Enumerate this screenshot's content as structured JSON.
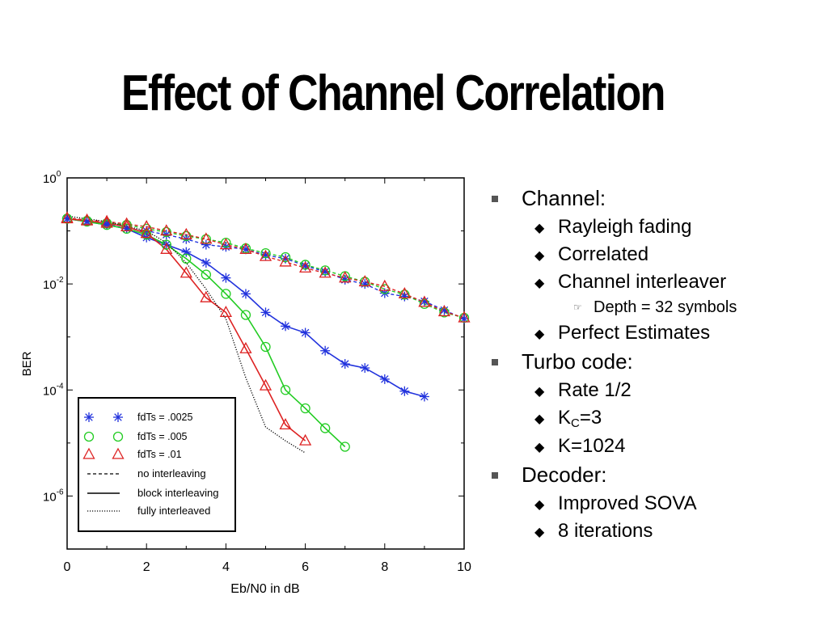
{
  "slide": {
    "title": "Effect of Channel Correlation"
  },
  "bullets": [
    {
      "level": 1,
      "text": "Channel:"
    },
    {
      "level": 2,
      "text": "Rayleigh fading"
    },
    {
      "level": 2,
      "text": "Correlated"
    },
    {
      "level": 2,
      "text": "Channel interleaver"
    },
    {
      "level": 3,
      "text": "Depth = 32 symbols"
    },
    {
      "level": 2,
      "text": "Perfect Estimates"
    },
    {
      "level": 1,
      "text": "Turbo code:"
    },
    {
      "level": 2,
      "text": "Rate 1/2"
    },
    {
      "level": 2,
      "text": "K",
      "sub": "C",
      "suffix": "=3"
    },
    {
      "level": 2,
      "text": "K=1024"
    },
    {
      "level": 1,
      "text": "Decoder:"
    },
    {
      "level": 2,
      "text": "Improved SOVA"
    },
    {
      "level": 2,
      "text": "8 iterations"
    }
  ],
  "icons": {
    "level1": "square-bullet-icon",
    "level2": "diamond-bullet-icon",
    "level3": "pointing-hand-icon"
  },
  "chart_data": {
    "type": "line",
    "xlabel": "Eb/N0 in dB",
    "ylabel": "BER",
    "xlim": [
      0,
      10
    ],
    "ylim": [
      1e-07,
      1
    ],
    "yscale": "log",
    "xticks": [
      0,
      2,
      4,
      6,
      8,
      10
    ],
    "yticks": [
      {
        "value": 1,
        "label": "10^0"
      },
      {
        "value": 0.01,
        "label": "10^-2"
      },
      {
        "value": 0.0001,
        "label": "10^-4"
      },
      {
        "value": 1e-06,
        "label": "10^-6"
      }
    ],
    "grid": false,
    "legend_position": "bottom-left",
    "legend": [
      {
        "label": "fdTs = .0025",
        "marker": "star",
        "color": "#2233dd"
      },
      {
        "label": "fdTs = .005",
        "marker": "circle",
        "color": "#22cc22"
      },
      {
        "label": "fdTs = .01",
        "marker": "triangle",
        "color": "#dd2222"
      },
      {
        "label": "no interleaving",
        "dash": "dashed"
      },
      {
        "label": "block interleaving",
        "dash": "solid"
      },
      {
        "label": "fully interleaved",
        "dash": "dotted"
      }
    ],
    "series": [
      {
        "name": "fdTs = .0025",
        "interleaving": "no interleaving",
        "marker": "star",
        "color": "#2233dd",
        "x": [
          0,
          0.5,
          1,
          1.5,
          2,
          2.5,
          3,
          3.5,
          4,
          4.5,
          5,
          5.5,
          6,
          6.5,
          7,
          7.5,
          8,
          8.5,
          9,
          9.5,
          10
        ],
        "y": [
          0.17,
          0.15,
          0.135,
          0.11,
          0.1,
          0.085,
          0.07,
          0.055,
          0.05,
          0.045,
          0.035,
          0.03,
          0.022,
          0.017,
          0.012,
          0.01,
          0.0067,
          0.0058,
          0.0047,
          0.0032,
          0.0022
        ]
      },
      {
        "name": "fdTs = .005",
        "interleaving": "no interleaving",
        "marker": "circle",
        "color": "#22cc22",
        "x": [
          0,
          0.5,
          1,
          1.5,
          2,
          2.5,
          3,
          3.5,
          4,
          4.5,
          5,
          5.5,
          6,
          6.5,
          7,
          7.5,
          8,
          8.5,
          9,
          9.5,
          10
        ],
        "y": [
          0.17,
          0.155,
          0.14,
          0.13,
          0.11,
          0.095,
          0.08,
          0.07,
          0.06,
          0.047,
          0.038,
          0.032,
          0.023,
          0.018,
          0.014,
          0.011,
          0.008,
          0.0063,
          0.0042,
          0.0029,
          0.0023
        ]
      },
      {
        "name": "fdTs = .01",
        "interleaving": "no interleaving",
        "marker": "triangle",
        "color": "#dd2222",
        "x": [
          0,
          0.5,
          1,
          1.5,
          2,
          2.5,
          3,
          3.5,
          4,
          4.5,
          5,
          5.5,
          6,
          6.5,
          7,
          7.5,
          8,
          8.5,
          9,
          9.5,
          10
        ],
        "y": [
          0.175,
          0.16,
          0.15,
          0.135,
          0.12,
          0.1,
          0.085,
          0.07,
          0.055,
          0.045,
          0.033,
          0.026,
          0.02,
          0.016,
          0.013,
          0.011,
          0.009,
          0.0065,
          0.0045,
          0.003,
          0.0023
        ]
      },
      {
        "name": "fdTs = .0025",
        "interleaving": "block interleaving",
        "marker": "star",
        "color": "#2233dd",
        "x": [
          0,
          0.5,
          1,
          1.5,
          2,
          2.5,
          3,
          3.5,
          4,
          4.5,
          5,
          5.5,
          6,
          6.5,
          7,
          7.5,
          8,
          8.5,
          9
        ],
        "y": [
          0.17,
          0.15,
          0.13,
          0.11,
          0.075,
          0.055,
          0.04,
          0.025,
          0.013,
          0.0065,
          0.0029,
          0.0016,
          0.0012,
          0.00055,
          0.00031,
          0.00026,
          0.00016,
          9.5e-05,
          7.5e-05
        ]
      },
      {
        "name": "fdTs = .005",
        "interleaving": "block interleaving",
        "marker": "circle",
        "color": "#22cc22",
        "x": [
          0,
          0.5,
          1,
          1.5,
          2,
          2.5,
          3,
          3.5,
          4,
          4.5,
          5,
          5.5,
          6,
          6.5,
          7
        ],
        "y": [
          0.17,
          0.15,
          0.13,
          0.11,
          0.085,
          0.055,
          0.03,
          0.015,
          0.0065,
          0.0026,
          0.00065,
          0.0001,
          4.5e-05,
          1.9e-05,
          8.5e-06
        ]
      },
      {
        "name": "fdTs = .01",
        "interleaving": "block interleaving",
        "marker": "triangle",
        "color": "#dd2222",
        "x": [
          0,
          0.5,
          1,
          1.5,
          2,
          2.5,
          3,
          3.5,
          4,
          4.5,
          5,
          5.5,
          6
        ],
        "y": [
          0.17,
          0.155,
          0.14,
          0.12,
          0.09,
          0.045,
          0.016,
          0.0055,
          0.0029,
          0.0006,
          0.00012,
          2.2e-05,
          1.1e-05
        ]
      },
      {
        "name": "fully interleaved",
        "interleaving": "fully interleaved",
        "marker": "none",
        "color": "#000000",
        "x": [
          0,
          1,
          2,
          2.5,
          3,
          3.5,
          4,
          4.5,
          5,
          5.5,
          6
        ],
        "y": [
          0.19,
          0.15,
          0.1,
          0.06,
          0.025,
          0.008,
          0.0022,
          0.00017,
          2e-05,
          1.1e-05,
          6.5e-06
        ]
      }
    ]
  }
}
